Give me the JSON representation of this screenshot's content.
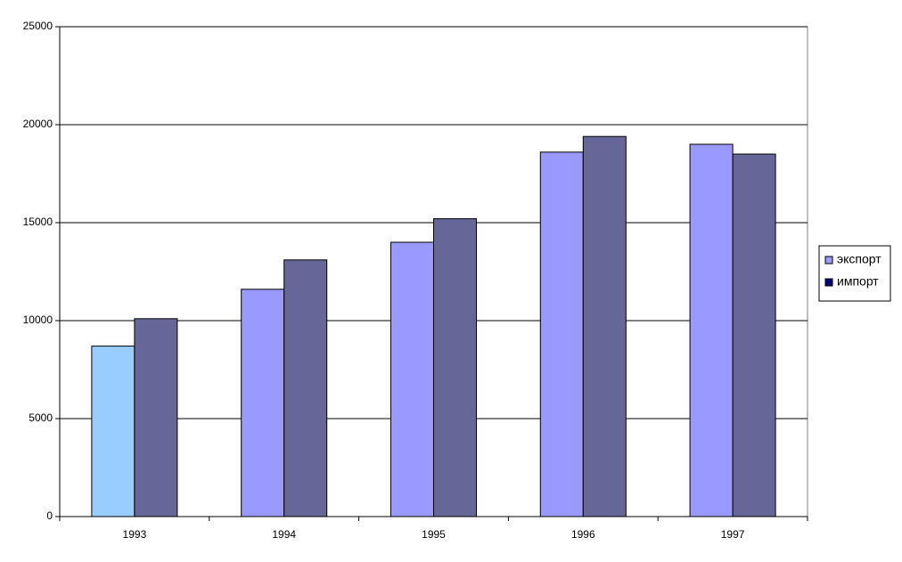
{
  "chart_data": {
    "type": "bar",
    "categories": [
      "1993",
      "1994",
      "1995",
      "1996",
      "1997"
    ],
    "series": [
      {
        "name": "экспорт",
        "color": "#9999ff",
        "legend_color": "#9999ff",
        "colors": [
          "#99ccff",
          "#9999ff",
          "#9999ff",
          "#9999ff",
          "#9999ff"
        ],
        "values": [
          8700,
          11600,
          14000,
          18600,
          19000
        ]
      },
      {
        "name": "импорт",
        "color": "#666699",
        "legend_color": "#000080",
        "values": [
          10100,
          13100,
          15200,
          19400,
          18500
        ]
      }
    ],
    "ylim": [
      0,
      25000
    ],
    "yticks": [
      0,
      5000,
      10000,
      15000,
      20000,
      25000
    ],
    "grid": true,
    "legend": "right"
  }
}
